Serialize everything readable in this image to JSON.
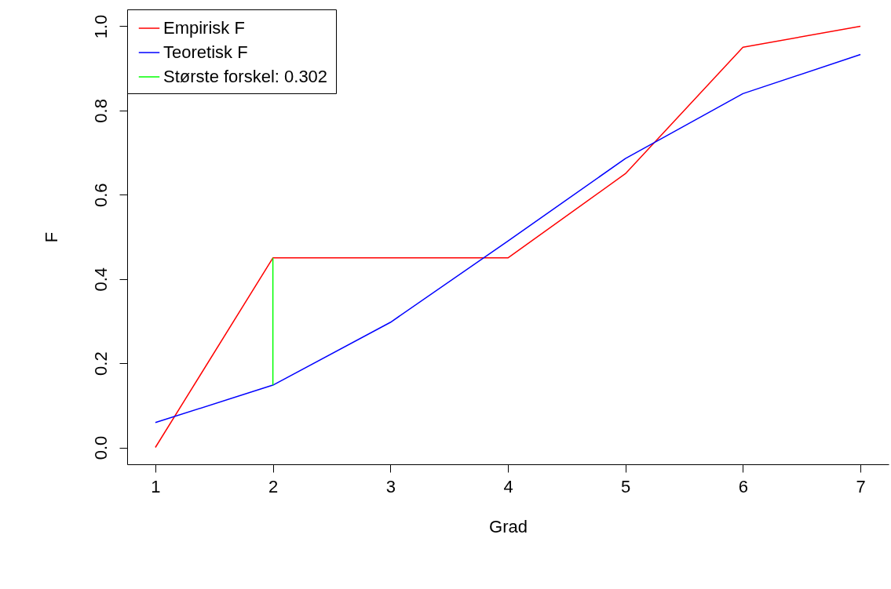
{
  "chart_data": {
    "type": "line",
    "xlabel": "Grad",
    "ylabel": "F",
    "x": [
      1,
      2,
      3,
      4,
      5,
      6,
      7
    ],
    "xlim": [
      0.76,
      7.24
    ],
    "ylim": [
      -0.04,
      1.04
    ],
    "xticks": [
      1,
      2,
      3,
      4,
      5,
      6,
      7
    ],
    "yticks": [
      {
        "value": 0,
        "label": "0.0"
      },
      0.2,
      0.4,
      0.6,
      0.8,
      {
        "value": 1,
        "label": "1.0"
      }
    ],
    "grid": false,
    "legend": "top left",
    "series": [
      {
        "name": "Empirisk F",
        "color": "#ff0000",
        "values": [
          0,
          0.45,
          0.45,
          0.45,
          0.65,
          0.95,
          1.0
        ]
      },
      {
        "name": "Teoretisk F",
        "color": "#0000ff",
        "values": [
          0.059,
          0.148,
          0.297,
          0.49,
          0.686,
          0.84,
          0.933
        ]
      },
      {
        "name": "Største forskel: 0.302",
        "color": "#00ff00",
        "type": "line",
        "x": [
          2,
          2
        ],
        "values": [
          0.148,
          0.45
        ]
      }
    ]
  }
}
